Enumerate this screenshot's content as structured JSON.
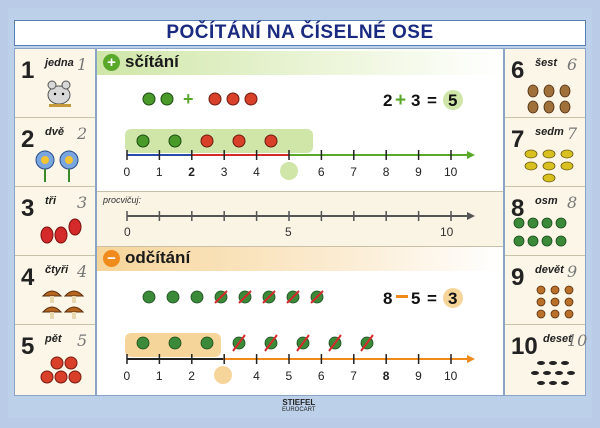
{
  "title": "POČÍTÁNÍ NA ČÍSELNÉ OSE",
  "left_numbers": [
    {
      "digit": "1",
      "word": "jedna",
      "script": "1"
    },
    {
      "digit": "2",
      "word": "dvě",
      "script": "2"
    },
    {
      "digit": "3",
      "word": "tři",
      "script": "3"
    },
    {
      "digit": "4",
      "word": "čtyři",
      "script": "4"
    },
    {
      "digit": "5",
      "word": "pět",
      "script": "5"
    }
  ],
  "right_numbers": [
    {
      "digit": "6",
      "word": "šest",
      "script": "6"
    },
    {
      "digit": "7",
      "word": "sedm",
      "script": "7"
    },
    {
      "digit": "8",
      "word": "osm",
      "script": "8"
    },
    {
      "digit": "9",
      "word": "devět",
      "script": "9"
    },
    {
      "digit": "10",
      "word": "deset",
      "script": "10"
    }
  ],
  "addition": {
    "header": "sčítání",
    "icon": "plus-icon",
    "eq_a": "2",
    "eq_b": "3",
    "eq_eq": "=",
    "eq_result": "5",
    "ticks": [
      "0",
      "1",
      "2",
      "3",
      "4",
      "5",
      "6",
      "7",
      "8",
      "9",
      "10"
    ]
  },
  "practice": {
    "label": "procvičuj:",
    "ticks": [
      "0",
      "5",
      "10"
    ]
  },
  "subtraction": {
    "header": "odčítání",
    "icon": "minus-icon",
    "eq_a": "8",
    "eq_b": "5",
    "eq_eq": "=",
    "eq_result": "3",
    "ticks": [
      "0",
      "1",
      "2",
      "3",
      "4",
      "5",
      "6",
      "7",
      "8",
      "9",
      "10"
    ]
  },
  "footer": {
    "brand": "STIEFEL",
    "brand_sub": "EUROCART"
  },
  "colors": {
    "green": "#5aa82a",
    "orange": "#f08a1c",
    "red": "#d42a2a",
    "blue": "#2a4aa8",
    "navy": "#1a2a80"
  }
}
